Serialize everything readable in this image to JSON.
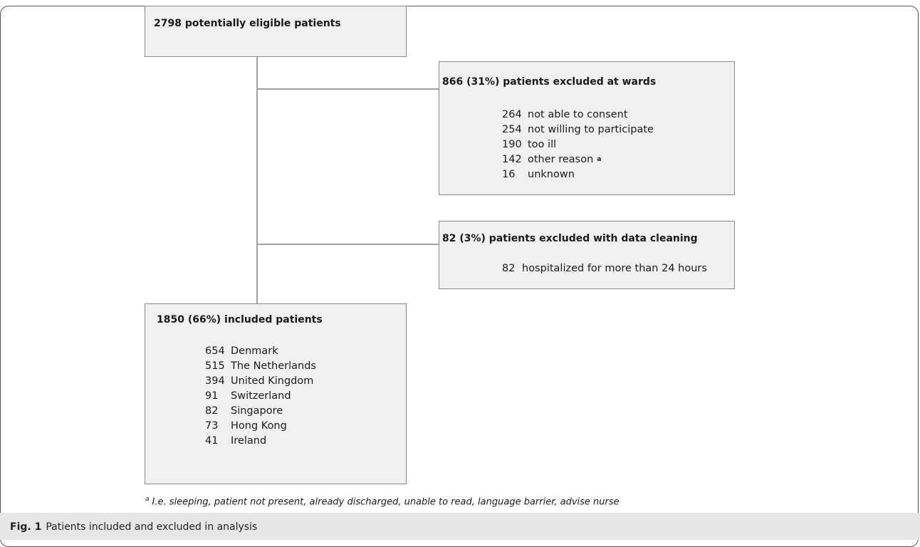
{
  "top_box": {
    "title": "2798 potentially eligible patients"
  },
  "excluded_wards": {
    "title": "866 (31%) patients excluded at wards",
    "rows": [
      {
        "n": "264",
        "label": "not able to consent"
      },
      {
        "n": "254",
        "label": "not willing to participate"
      },
      {
        "n": "190",
        "label": "too ill"
      },
      {
        "n": "142",
        "label": "other reason",
        "mark": "a"
      },
      {
        "n": "16",
        "label": "unknown"
      }
    ]
  },
  "excluded_cleaning": {
    "title": "82 (3%) patients excluded with data cleaning",
    "rows": [
      {
        "n": "82",
        "label": "hospitalized for more than 24 hours"
      }
    ]
  },
  "included": {
    "title": "1850 (66%) included patients",
    "rows": [
      {
        "n": "654",
        "label": "Denmark"
      },
      {
        "n": "515",
        "label": "The Netherlands"
      },
      {
        "n": "394",
        "label": "United Kingdom"
      },
      {
        "n": "91",
        "label": "Switzerland"
      },
      {
        "n": "82",
        "label": "Singapore"
      },
      {
        "n": "73",
        "label": "Hong Kong"
      },
      {
        "n": "41",
        "label": "Ireland"
      }
    ]
  },
  "footnote": {
    "mark": "a",
    "text": "I.e. sleeping, patient not present, already discharged, unable to read, language barrier, advise nurse"
  },
  "caption": {
    "label": "Fig. 1",
    "text": "Patients included and excluded in analysis"
  }
}
